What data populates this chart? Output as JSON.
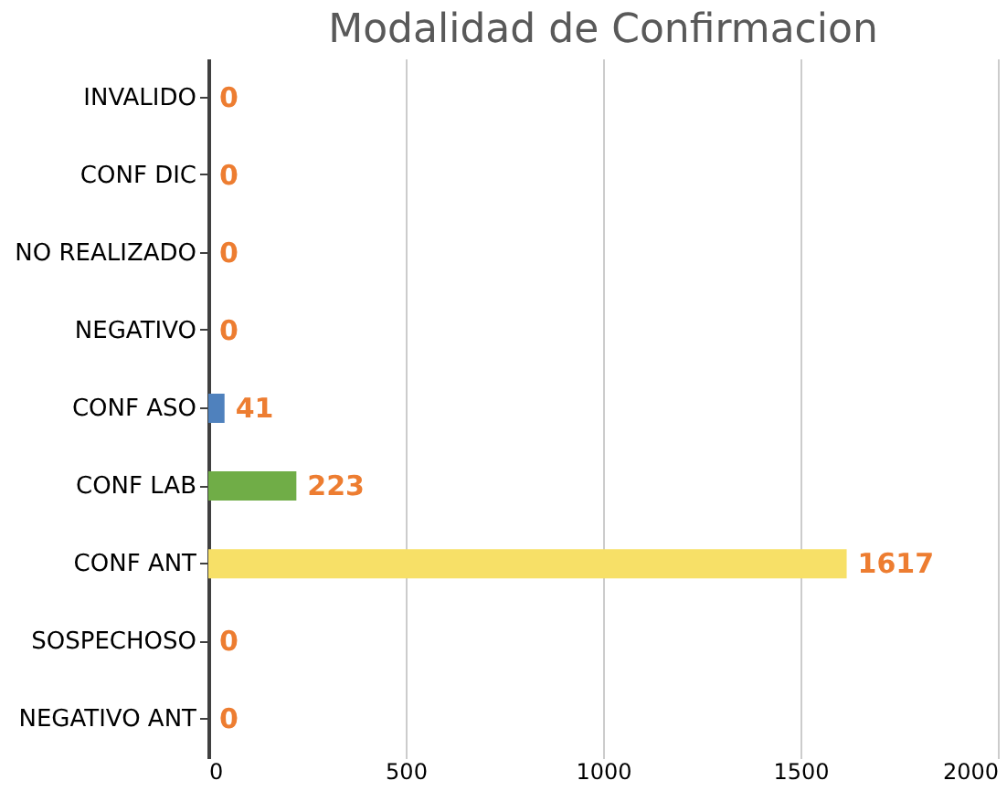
{
  "chart_data": {
    "type": "bar",
    "orientation": "horizontal",
    "title": "Modalidad de Confirmacion",
    "categories": [
      "INVALIDO",
      "CONF DIC",
      "NO REALIZADO",
      "NEGATIVO",
      "CONF ASO",
      "CONF LAB",
      "CONF ANT",
      "SOSPECHOSO",
      "NEGATIVO  ANT"
    ],
    "values": [
      0,
      0,
      0,
      0,
      41,
      223,
      1617,
      0,
      0
    ],
    "colors": [
      "#4f81bd",
      "#4f81bd",
      "#4f81bd",
      "#4f81bd",
      "#4f81bd",
      "#70ad47",
      "#f7e067",
      "#4f81bd",
      "#4f81bd"
    ],
    "xlim": [
      0,
      2000
    ],
    "xticks": [
      0,
      500,
      1000,
      1500,
      2000
    ],
    "grid": "x",
    "data_labels": true
  }
}
